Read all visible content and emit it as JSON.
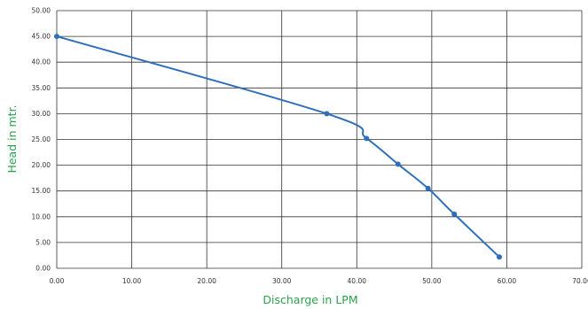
{
  "colors": {
    "line": "#2e6fba",
    "point": "#2e6fba",
    "grid": "#333333",
    "axis_title": "#2aa14f"
  },
  "chart_data": {
    "type": "line",
    "title": "",
    "xlabel": "Discharge in LPM",
    "ylabel": "Head in mtr.",
    "xlim": [
      0,
      70
    ],
    "ylim": [
      0,
      50
    ],
    "x_ticks": [
      "0.00",
      "10.00",
      "20.00",
      "30.00",
      "40.00",
      "50.00",
      "60.00",
      "70.00"
    ],
    "y_ticks": [
      "0.00",
      "5.00",
      "10.00",
      "15.00",
      "20.00",
      "25.00",
      "30.00",
      "35.00",
      "40.00",
      "45.00",
      "50.00"
    ],
    "grid": true,
    "legend": "none",
    "series": [
      {
        "points": [
          {
            "x": 0.0,
            "y": 45.0
          },
          {
            "x": 36.0,
            "y": 30.0
          },
          {
            "x": 41.3,
            "y": 25.2
          },
          {
            "x": 45.5,
            "y": 20.2
          },
          {
            "x": 49.5,
            "y": 15.5
          },
          {
            "x": 53.0,
            "y": 10.5
          },
          {
            "x": 59.0,
            "y": 2.2
          }
        ]
      }
    ]
  }
}
